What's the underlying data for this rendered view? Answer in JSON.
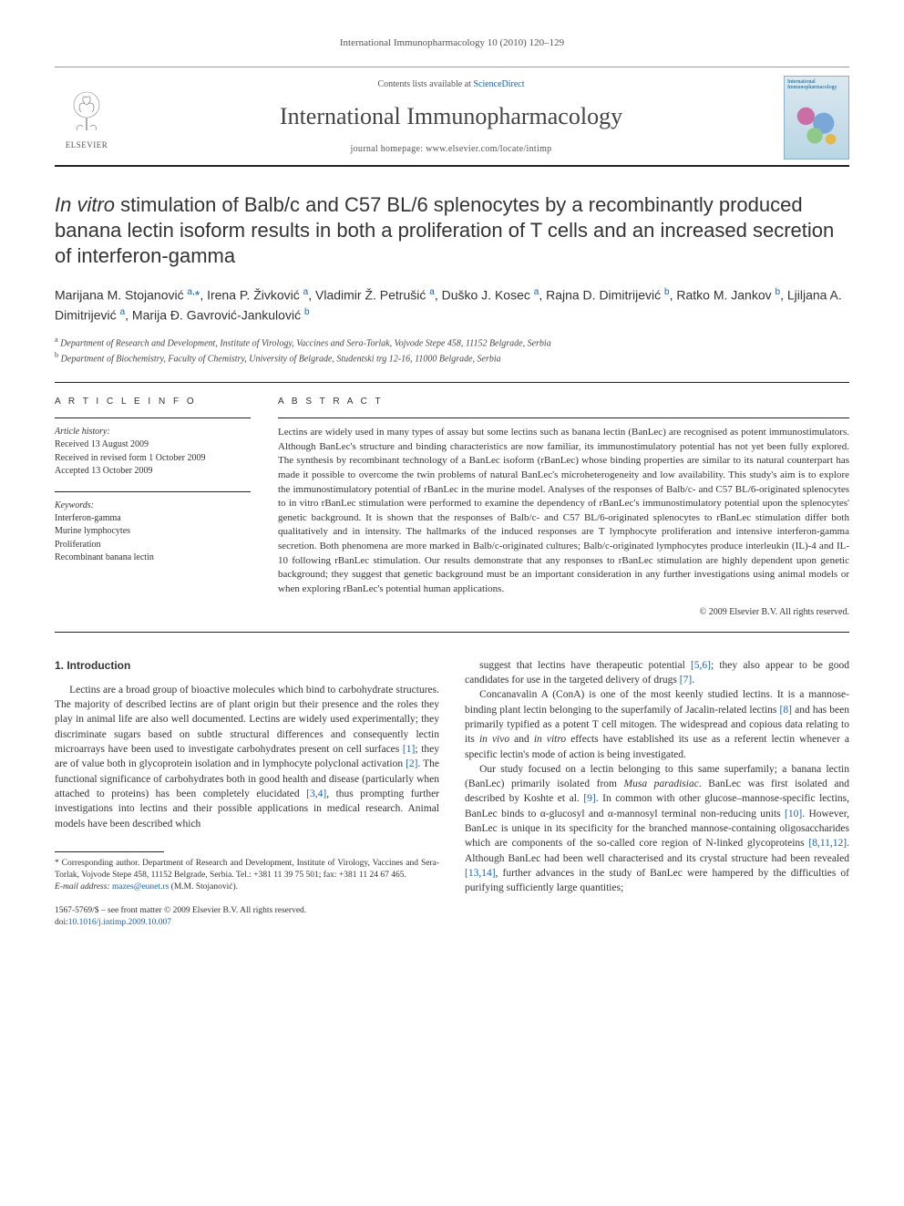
{
  "running_header": "International Immunopharmacology 10 (2010) 120–129",
  "masthead": {
    "contents_prefix": "Contents lists available at ",
    "contents_link": "ScienceDirect",
    "journal_title": "International Immunopharmacology",
    "homepage_prefix": "journal homepage: ",
    "homepage_url": "www.elsevier.com/locate/intimp",
    "elsevier_label": "ELSEVIER",
    "cover_title": "International Immunopharmacology"
  },
  "article": {
    "title_pre_italic": "In vitro",
    "title_rest": " stimulation of Balb/c and C57 BL/6 splenocytes by a recombinantly produced banana lectin isoform results in both a proliferation of T cells and an increased secretion of interferon-gamma",
    "authors_html": "Marijana M. Stojanović <sup>a,</sup><span class='star'>*</span>, Irena P. Živković <sup>a</sup>, Vladimir Ž. Petrušić <sup>a</sup>, Duško J. Kosec <sup>a</sup>, Rajna D. Dimitrijević <sup>b</sup>, Ratko M. Jankov <sup>b</sup>, Ljiljana A. Dimitrijević <sup>a</sup>, Marija Đ. Gavrović-Jankulović <sup>b</sup>",
    "affiliations": [
      {
        "sup": "a",
        "text": "Department of Research and Development, Institute of Virology, Vaccines and Sera-Torlak, Vojvode Stepe 458, 11152 Belgrade, Serbia"
      },
      {
        "sup": "b",
        "text": "Department of Biochemistry, Faculty of Chemistry, University of Belgrade, Studentski trg 12-16, 11000 Belgrade, Serbia"
      }
    ]
  },
  "article_info": {
    "heading": "A R T I C L E   I N F O",
    "history_label": "Article history:",
    "history": [
      "Received 13 August 2009",
      "Received in revised form 1 October 2009",
      "Accepted 13 October 2009"
    ],
    "keywords_label": "Keywords:",
    "keywords": [
      "Interferon-gamma",
      "Murine lymphocytes",
      "Proliferation",
      "Recombinant banana lectin"
    ]
  },
  "abstract": {
    "heading": "A B S T R A C T",
    "text": "Lectins are widely used in many types of assay but some lectins such as banana lectin (BanLec) are recognised as potent immunostimulators. Although BanLec's structure and binding characteristics are now familiar, its immunostimulatory potential has not yet been fully explored. The synthesis by recombinant technology of a BanLec isoform (rBanLec) whose binding properties are similar to its natural counterpart has made it possible to overcome the twin problems of natural BanLec's microheterogeneity and low availability. This study's aim is to explore the immunostimulatory potential of rBanLec in the murine model. Analyses of the responses of Balb/c- and C57 BL/6-originated splenocytes to in vitro rBanLec stimulation were performed to examine the dependency of rBanLec's immunostimulatory potential upon the splenocytes' genetic background. It is shown that the responses of Balb/c- and C57 BL/6-originated splenocytes to rBanLec stimulation differ both qualitatively and in intensity. The hallmarks of the induced responses are T lymphocyte proliferation and intensive interferon-gamma secretion. Both phenomena are more marked in Balb/c-originated cultures; Balb/c-originated lymphocytes produce interleukin (IL)-4 and IL-10 following rBanLec stimulation. Our results demonstrate that any responses to rBanLec stimulation are highly dependent upon genetic background; they suggest that genetic background must be an important consideration in any further investigations using animal models or when exploring rBanLec's potential human applications.",
    "copyright": "© 2009 Elsevier B.V. All rights reserved."
  },
  "body": {
    "section_heading": "1. Introduction",
    "p1": "Lectins are a broad group of bioactive molecules which bind to carbohydrate structures. The majority of described lectins are of plant origin but their presence and the roles they play in animal life are also well documented. Lectins are widely used experimentally; they discriminate sugars based on subtle structural differences and consequently lectin microarrays have been used to investigate carbohydrates present on cell surfaces [1]; they are of value both in glycoprotein isolation and in lymphocyte polyclonal activation [2]. The functional significance of carbohydrates both in good health and disease (particularly when attached to proteins) has been completely elucidated [3,4], thus prompting further investigations into lectins and their possible applications in medical research. Animal models have been described which",
    "p2": "suggest that lectins have therapeutic potential [5,6]; they also appear to be good candidates for use in the targeted delivery of drugs [7].",
    "p3": "Concanavalin A (ConA) is one of the most keenly studied lectins. It is a mannose-binding plant lectin belonging to the superfamily of Jacalin-related lectins [8] and has been primarily typified as a potent T cell mitogen. The widespread and copious data relating to its in vivo and in vitro effects have established its use as a referent lectin whenever a specific lectin's mode of action is being investigated.",
    "p4": "Our study focused on a lectin belonging to this same superfamily; a banana lectin (BanLec) primarily isolated from Musa paradisiac. BanLec was first isolated and described by Koshte et al. [9]. In common with other glucose–mannose-specific lectins, BanLec binds to α-glucosyl and α-mannosyl terminal non-reducing units [10]. However, BanLec is unique in its specificity for the branched mannose-containing oligosaccharides which are components of the so-called core region of N-linked glycoproteins [8,11,12]. Although BanLec had been well characterised and its crystal structure had been revealed [13,14], further advances in the study of BanLec were hampered by the difficulties of purifying sufficiently large quantities;",
    "refs": {
      "r1": "[1]",
      "r2": "[2]",
      "r34": "[3,4]",
      "r56": "[5,6]",
      "r7": "[7]",
      "r8a": "[8]",
      "r9": "[9]",
      "r10": "[10]",
      "r81112": "[8,11,12]",
      "r1314": "[13,14]"
    }
  },
  "footnotes": {
    "corr": "* Corresponding author. Department of Research and Development, Institute of Virology, Vaccines and Sera-Torlak, Vojvode Stepe 458, 11152 Belgrade, Serbia. Tel.: +381 11 39 75 501; fax: +381 11 24 67 465.",
    "email_label": "E-mail address: ",
    "email": "mazes@eunet.rs",
    "email_suffix": " (M.M. Stojanović)."
  },
  "bottom": {
    "issn_line": "1567-5769/$ – see front matter © 2009 Elsevier B.V. All rights reserved.",
    "doi_prefix": "doi:",
    "doi": "10.1016/j.intimp.2009.10.007"
  },
  "colors": {
    "link": "#1b61b0",
    "rule": "#222222",
    "text": "#333333",
    "cover_bg_top": "#dbe8f0",
    "cover_bg_bot": "#b9d6e4",
    "cover_border": "#8cb0c6",
    "elsevier_orange": "#e6742e"
  }
}
